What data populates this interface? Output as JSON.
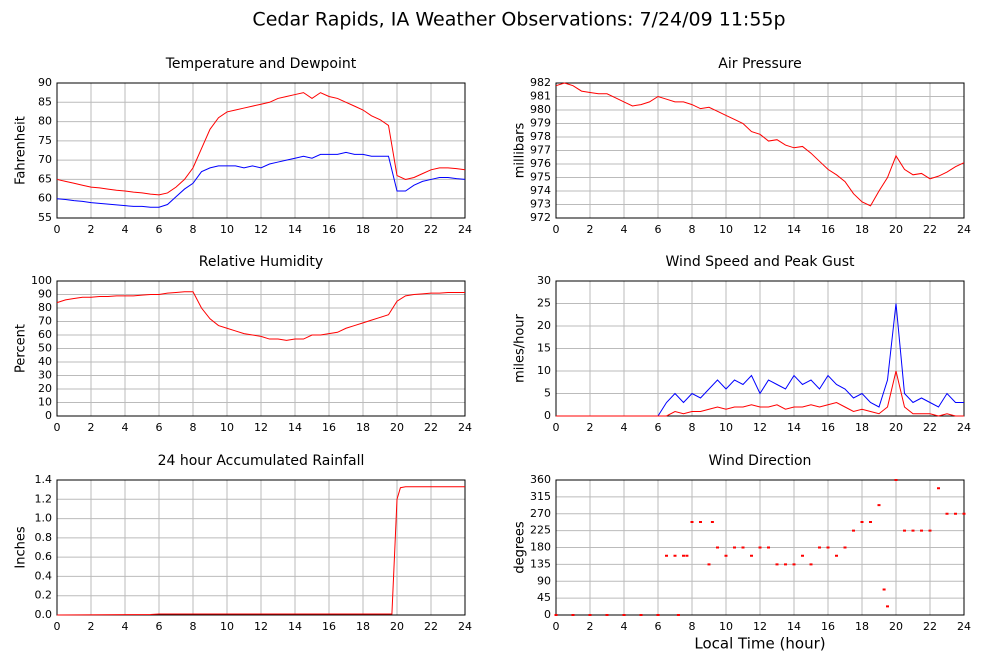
{
  "title": "Cedar Rapids, IA Weather Observations: 7/24/09 11:55p",
  "chart_data": [
    {
      "type": "line",
      "title": "Temperature and Dewpoint",
      "ylabel": "Fahrenheit",
      "grid": true,
      "x": [
        0,
        0.5,
        1,
        1.5,
        2,
        2.5,
        3,
        3.5,
        4,
        4.5,
        5,
        5.5,
        6,
        6.5,
        7,
        7.5,
        8,
        8.5,
        9,
        9.5,
        10,
        10.5,
        11,
        11.5,
        12,
        12.5,
        13,
        13.5,
        14,
        14.5,
        15,
        15.5,
        16,
        16.5,
        17,
        17.5,
        18,
        18.5,
        19,
        19.5,
        20,
        20.5,
        21,
        21.5,
        22,
        22.5,
        23,
        23.5,
        24
      ],
      "series": [
        {
          "color": "#ff0000",
          "values": [
            65,
            64.5,
            64,
            63.5,
            63,
            62.8,
            62.5,
            62.2,
            62,
            61.7,
            61.5,
            61.2,
            61,
            61.5,
            63,
            65,
            68,
            73,
            78,
            81,
            82.5,
            83,
            83.5,
            84,
            84.5,
            85,
            86,
            86.5,
            87,
            87.5,
            86,
            87.5,
            86.5,
            86,
            85,
            84,
            83,
            81.5,
            80.5,
            79,
            66,
            65,
            65.5,
            66.5,
            67.5,
            68,
            68,
            67.8,
            67.5
          ]
        },
        {
          "color": "#0000ff",
          "values": [
            60,
            59.8,
            59.5,
            59.3,
            59,
            58.8,
            58.6,
            58.4,
            58.2,
            58,
            58,
            57.8,
            57.8,
            58.5,
            60.5,
            62.5,
            64,
            67,
            68,
            68.5,
            68.5,
            68.5,
            68,
            68.5,
            68,
            69,
            69.5,
            70,
            70.5,
            71,
            70.5,
            71.5,
            71.5,
            71.5,
            72,
            71.5,
            71.5,
            71,
            71,
            71,
            62,
            62,
            63.5,
            64.5,
            65,
            65.5,
            65.5,
            65.2,
            65
          ]
        }
      ],
      "xlim": [
        0,
        24
      ],
      "xticks": [
        0,
        2,
        4,
        6,
        8,
        10,
        12,
        14,
        16,
        18,
        20,
        22,
        24
      ],
      "ylim": [
        55,
        90
      ],
      "yticks": [
        55,
        60,
        65,
        70,
        75,
        80,
        85,
        90
      ]
    },
    {
      "type": "line",
      "title": "Air Pressure",
      "ylabel": "millibars",
      "grid": true,
      "x": [
        0,
        0.5,
        1,
        1.5,
        2,
        2.5,
        3,
        3.5,
        4,
        4.5,
        5,
        5.5,
        6,
        6.5,
        7,
        7.5,
        8,
        8.5,
        9,
        9.5,
        10,
        10.5,
        11,
        11.5,
        12,
        12.5,
        13,
        13.5,
        14,
        14.5,
        15,
        15.5,
        16,
        16.5,
        17,
        17.5,
        18,
        18.5,
        19,
        19.5,
        20,
        20.5,
        21,
        21.5,
        22,
        22.5,
        23,
        23.5,
        24
      ],
      "series": [
        {
          "color": "#ff0000",
          "values": [
            981.8,
            982,
            981.8,
            981.4,
            981.3,
            981.2,
            981.2,
            980.9,
            980.6,
            980.3,
            980.4,
            980.6,
            981,
            980.8,
            980.6,
            980.6,
            980.4,
            980.1,
            980.2,
            979.9,
            979.6,
            979.3,
            979,
            978.4,
            978.2,
            977.7,
            977.8,
            977.4,
            977.2,
            977.3,
            976.8,
            976.2,
            975.6,
            975.2,
            974.7,
            973.8,
            973.2,
            972.9,
            974,
            975,
            976.6,
            975.6,
            975.2,
            975.3,
            974.9,
            975.1,
            975.4,
            975.8,
            976.1
          ]
        }
      ],
      "xlim": [
        0,
        24
      ],
      "xticks": [
        0,
        2,
        4,
        6,
        8,
        10,
        12,
        14,
        16,
        18,
        20,
        22,
        24
      ],
      "ylim": [
        972,
        982
      ],
      "yticks": [
        972,
        973,
        974,
        975,
        976,
        977,
        978,
        979,
        980,
        981,
        982
      ]
    },
    {
      "type": "line",
      "title": "Relative Humidity",
      "ylabel": "Percent",
      "grid": true,
      "x": [
        0,
        0.5,
        1,
        1.5,
        2,
        2.5,
        3,
        3.5,
        4,
        4.5,
        5,
        5.5,
        6,
        6.5,
        7,
        7.5,
        8,
        8.5,
        9,
        9.5,
        10,
        10.5,
        11,
        11.5,
        12,
        12.5,
        13,
        13.5,
        14,
        14.5,
        15,
        15.5,
        16,
        16.5,
        17,
        17.5,
        18,
        18.5,
        19,
        19.5,
        20,
        20.5,
        21,
        21.5,
        22,
        22.5,
        23,
        23.5,
        24
      ],
      "series": [
        {
          "color": "#ff0000",
          "values": [
            84,
            86,
            87,
            88,
            88,
            88.5,
            88.5,
            89,
            89,
            89,
            89.5,
            90,
            90,
            91,
            91.5,
            92,
            92,
            80,
            72,
            67,
            65,
            63,
            61,
            60,
            59,
            57,
            57,
            56,
            57,
            57,
            60,
            60,
            61,
            62,
            65,
            67,
            69,
            71,
            73,
            75,
            85,
            89,
            90,
            90.5,
            91,
            91,
            91.5,
            91.5,
            91.5
          ]
        }
      ],
      "xlim": [
        0,
        24
      ],
      "xticks": [
        0,
        2,
        4,
        6,
        8,
        10,
        12,
        14,
        16,
        18,
        20,
        22,
        24
      ],
      "ylim": [
        0,
        100
      ],
      "yticks": [
        0,
        10,
        20,
        30,
        40,
        50,
        60,
        70,
        80,
        90,
        100
      ]
    },
    {
      "type": "line",
      "title": "Wind Speed and Peak Gust",
      "ylabel": "miles/hour",
      "grid": true,
      "x": [
        0,
        0.5,
        1,
        1.5,
        2,
        2.5,
        3,
        3.5,
        4,
        4.5,
        5,
        5.5,
        6,
        6.5,
        7,
        7.5,
        8,
        8.5,
        9,
        9.5,
        10,
        10.5,
        11,
        11.5,
        12,
        12.5,
        13,
        13.5,
        14,
        14.5,
        15,
        15.5,
        16,
        16.5,
        17,
        17.5,
        18,
        18.5,
        19,
        19.5,
        20,
        20.5,
        21,
        21.5,
        22,
        22.5,
        23,
        23.5,
        24
      ],
      "series": [
        {
          "color": "#0000ff",
          "values": [
            0,
            0,
            0,
            0,
            0,
            0,
            0,
            0,
            0,
            0,
            0,
            0,
            0,
            3,
            5,
            3,
            5,
            4,
            6,
            8,
            6,
            8,
            7,
            9,
            5,
            8,
            7,
            6,
            9,
            7,
            8,
            6,
            9,
            7,
            6,
            4,
            5,
            3,
            2,
            8,
            25,
            5,
            3,
            4,
            3,
            2,
            5,
            3,
            3
          ]
        },
        {
          "color": "#ff0000",
          "values": [
            0,
            0,
            0,
            0,
            0,
            0,
            0,
            0,
            0,
            0,
            0,
            0,
            0,
            0,
            1,
            0.5,
            1,
            1,
            1.5,
            2,
            1.5,
            2,
            2,
            2.5,
            2,
            2,
            2.5,
            1.5,
            2,
            2,
            2.5,
            2,
            2.5,
            3,
            2,
            1,
            1.5,
            1,
            0.5,
            2,
            10,
            2,
            0.5,
            0.5,
            0.5,
            0,
            0.5,
            0,
            0
          ]
        }
      ],
      "xlim": [
        0,
        24
      ],
      "xticks": [
        0,
        2,
        4,
        6,
        8,
        10,
        12,
        14,
        16,
        18,
        20,
        22,
        24
      ],
      "ylim": [
        0,
        30
      ],
      "yticks": [
        0,
        5,
        10,
        15,
        20,
        25,
        30
      ]
    },
    {
      "type": "line",
      "title": "24 hour Accumulated Rainfall",
      "ylabel": "Inches",
      "grid": true,
      "x": [
        0,
        5.5,
        6,
        19.5,
        19.7,
        19.9,
        20,
        20.2,
        20.5,
        24
      ],
      "series": [
        {
          "color": "#ff0000",
          "values": [
            0,
            0.005,
            0.01,
            0.01,
            0.01,
            0.8,
            1.2,
            1.32,
            1.33,
            1.33
          ]
        }
      ],
      "xlim": [
        0,
        24
      ],
      "xticks": [
        0,
        2,
        4,
        6,
        8,
        10,
        12,
        14,
        16,
        18,
        20,
        22,
        24
      ],
      "ylim": [
        0,
        1.4
      ],
      "yticks": [
        {
          "value": 0,
          "label": "0.0"
        },
        0.2,
        0.4,
        0.6,
        0.8,
        {
          "value": 1,
          "label": "1.0"
        },
        1.2,
        1.4
      ]
    },
    {
      "type": "scatter",
      "title": "Wind Direction",
      "ylabel": "degrees",
      "xlabel": "Local Time (hour)",
      "grid": true,
      "x": [
        0,
        1,
        2,
        3,
        4,
        5,
        6,
        6.5,
        7,
        7.2,
        7.5,
        7.7,
        8,
        8.5,
        9,
        9.2,
        9.5,
        10,
        10.5,
        11,
        11.5,
        12,
        12.5,
        13,
        13.5,
        14,
        14.5,
        15,
        15.5,
        16,
        16.5,
        17,
        17.5,
        18,
        18.5,
        19,
        19.3,
        19.5,
        20,
        20.5,
        21,
        21.5,
        22,
        22.5,
        23,
        23.5,
        24
      ],
      "series": [
        {
          "color": "#ff0000",
          "values": [
            0,
            0,
            0,
            0,
            0,
            0,
            0,
            158,
            158,
            0,
            158,
            158,
            248,
            248,
            135,
            248,
            180,
            158,
            180,
            180,
            158,
            180,
            180,
            135,
            135,
            135,
            158,
            135,
            180,
            180,
            158,
            180,
            225,
            248,
            248,
            293,
            68,
            23,
            360,
            225,
            225,
            225,
            225,
            338,
            270,
            270,
            270
          ]
        }
      ],
      "xlim": [
        0,
        24
      ],
      "xticks": [
        0,
        2,
        4,
        6,
        8,
        10,
        12,
        14,
        16,
        18,
        20,
        22,
        24
      ],
      "ylim": [
        0,
        360
      ],
      "yticks": [
        0,
        45,
        90,
        135,
        180,
        225,
        270,
        315,
        360
      ]
    }
  ]
}
